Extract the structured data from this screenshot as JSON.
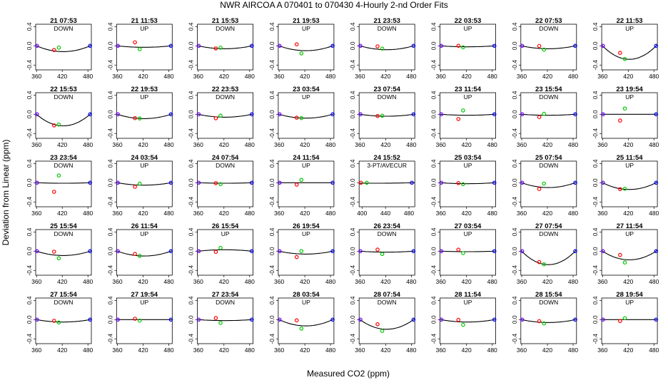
{
  "chart_data": {
    "type": "scatter",
    "title": "NWR   AIRCOA A   070401 to 070430   4-Hourly 2-nd Order Fits",
    "xlabel": "Measured CO2 (ppm)",
    "ylabel": "Deviation from Linear (ppm)",
    "ylim": [
      -0.5,
      0.45
    ],
    "yticks": [
      -0.4,
      0.0,
      0.4
    ],
    "ytick_labels": [
      "-0.4",
      "0.0",
      "0.4"
    ],
    "default_xlim": [
      358,
      488
    ],
    "default_xticks": [
      360,
      420,
      480
    ],
    "default_xtick_labels": [
      "360",
      "420",
      "480"
    ],
    "grid": false,
    "colors": {
      "low": "#6a00ff",
      "mid_a": "#ff0000",
      "mid_b": "#00c800",
      "high": "#0000ff",
      "curve": "#000000"
    },
    "panels": [
      {
        "title": "21 07:53",
        "label": "DOWN",
        "curve": {
          "a": 0.12,
          "vx": 420
        },
        "points": {
          "b": 0.02,
          "c": 0.08
        }
      },
      {
        "title": "21 11:53",
        "label": "UP",
        "curve": {
          "a": 0.03,
          "vx": 420
        },
        "points": {
          "b": 0.1,
          "c": -0.04
        }
      },
      {
        "title": "21 15:53",
        "label": "DOWN",
        "curve": {
          "a": 0.06,
          "vx": 420
        },
        "points": {
          "b": 0.0,
          "c": 0.02
        }
      },
      {
        "title": "21 19:53",
        "label": "UP",
        "curve": {
          "a": 0.1,
          "vx": 420
        },
        "points": {
          "b": 0.12,
          "c": -0.06
        }
      },
      {
        "title": "21 23:53",
        "label": "DOWN",
        "curve": {
          "a": 0.08,
          "vx": 420
        },
        "points": {
          "b": 0.06,
          "c": 0.02
        }
      },
      {
        "title": "22 03:53",
        "label": "UP",
        "curve": {
          "a": 0.02,
          "vx": 420
        },
        "points": {
          "b": 0.02,
          "c": -0.01
        }
      },
      {
        "title": "22 07:53",
        "label": "DOWN",
        "curve": {
          "a": 0.06,
          "vx": 420
        },
        "points": {
          "b": 0.05,
          "c": -0.02
        }
      },
      {
        "title": "22 11:53",
        "label": "UP",
        "curve": {
          "a": 0.28,
          "vx": 430
        },
        "points": {
          "b": 0.1,
          "c": 0.0
        }
      },
      {
        "title": "22 15:53",
        "label": "DOWN",
        "curve": {
          "a": 0.24,
          "vx": 425
        },
        "points": {
          "b": -0.02,
          "c": 0.02
        }
      },
      {
        "title": "22 19:53",
        "label": "UP",
        "curve": {
          "a": 0.09,
          "vx": 420
        },
        "points": {
          "b": 0.0,
          "c": 0.0
        }
      },
      {
        "title": "22 23:53",
        "label": "DOWN",
        "curve": {
          "a": 0.06,
          "vx": 420
        },
        "points": {
          "b": -0.03,
          "c": 0.03
        }
      },
      {
        "title": "23 03:54",
        "label": "UP",
        "curve": {
          "a": 0.08,
          "vx": 420
        },
        "points": {
          "b": 0.0,
          "c": 0.0
        }
      },
      {
        "title": "23 07:54",
        "label": "DOWN",
        "curve": {
          "a": 0.04,
          "vx": 420
        },
        "points": {
          "b": 0.0,
          "c": 0.01
        }
      },
      {
        "title": "23 11:54",
        "label": "UP",
        "curve": {
          "a": 0.02,
          "vx": 420
        },
        "points": {
          "b": -0.08,
          "c": 0.1
        }
      },
      {
        "title": "23 15:54",
        "label": "DOWN",
        "curve": {
          "a": 0.02,
          "vx": 420
        },
        "points": {
          "b": -0.04,
          "c": 0.03
        }
      },
      {
        "title": "23 19:54",
        "label": "UP",
        "curve": {
          "a": 0.0,
          "vx": 420
        },
        "points": {
          "b": -0.13,
          "c": 0.12
        }
      },
      {
        "title": "23 23:54",
        "label": "DOWN",
        "curve": {
          "a": 0.01,
          "vx": 420
        },
        "points": {
          "b": -0.18,
          "c": 0.16
        }
      },
      {
        "title": "24 03:54",
        "label": "UP",
        "curve": {
          "a": 0.05,
          "vx": 420
        },
        "points": {
          "b": -0.04,
          "c": 0.03
        }
      },
      {
        "title": "24 07:54",
        "label": "DOWN",
        "curve": {
          "a": 0.01,
          "vx": 420
        },
        "points": {
          "b": 0.0,
          "c": -0.02
        }
      },
      {
        "title": "24 11:54",
        "label": "UP",
        "curve": {
          "a": 0.0,
          "vx": 420
        },
        "points": {
          "b": -0.04,
          "c": 0.06
        }
      },
      {
        "title": "24 15:52",
        "label": "3-PT/AVECUR",
        "xlim": [
          395,
          490
        ],
        "xticks": [
          400,
          440,
          480
        ],
        "xtick_labels": [
          "400",
          "440",
          "480"
        ],
        "curve": {
          "a": 0.01,
          "vx": 440
        },
        "points": {
          "b": 0.02,
          "c": -0.02
        },
        "three_point": true
      },
      {
        "title": "25 03:54",
        "label": "UP",
        "curve": {
          "a": 0.02,
          "vx": 420
        },
        "points": {
          "b": 0.01,
          "c": -0.01
        }
      },
      {
        "title": "25 07:54",
        "label": "DOWN",
        "curve": {
          "a": 0.1,
          "vx": 420
        },
        "points": {
          "b": -0.04,
          "c": 0.08
        }
      },
      {
        "title": "25 11:54",
        "label": "UP",
        "curve": {
          "a": 0.14,
          "vx": 425
        },
        "points": {
          "b": -0.01,
          "c": 0.01
        }
      },
      {
        "title": "25 15:54",
        "label": "DOWN",
        "curve": {
          "a": 0.09,
          "vx": 420
        },
        "points": {
          "b": 0.07,
          "c": -0.06
        }
      },
      {
        "title": "26 11:54",
        "label": "UP",
        "curve": {
          "a": 0.1,
          "vx": 420
        },
        "points": {
          "b": 0.03,
          "c": 0.0
        }
      },
      {
        "title": "26 15:54",
        "label": "UP",
        "curve": {
          "a": -0.03,
          "vx": 420
        },
        "points": {
          "b": -0.04,
          "c": 0.04
        }
      },
      {
        "title": "26 19:54",
        "label": "UP",
        "curve": {
          "a": 0.06,
          "vx": 420
        },
        "points": {
          "b": -0.07,
          "c": 0.06
        }
      },
      {
        "title": "26 23:54",
        "label": "DOWN",
        "curve": {
          "a": 0.02,
          "vx": 420
        },
        "points": {
          "b": 0.05,
          "c": -0.04
        }
      },
      {
        "title": "27 03:54",
        "label": "UP",
        "curve": {
          "a": 0.01,
          "vx": 420
        },
        "points": {
          "b": 0.04,
          "c": -0.03
        }
      },
      {
        "title": "27 07:54",
        "label": "DOWN",
        "curve": {
          "a": 0.28,
          "vx": 430
        },
        "points": {
          "b": 0.02,
          "c": 0.0
        }
      },
      {
        "title": "27 11:54",
        "label": "UP",
        "curve": {
          "a": 0.18,
          "vx": 425
        },
        "points": {
          "b": 0.08,
          "c": -0.06
        }
      },
      {
        "title": "27 15:54",
        "label": "DOWN",
        "curve": {
          "a": 0.05,
          "vx": 420
        },
        "points": {
          "b": 0.02,
          "c": -0.01
        }
      },
      {
        "title": "27 19:54",
        "label": "UP",
        "curve": {
          "a": 0.0,
          "vx": 420
        },
        "points": {
          "b": 0.02,
          "c": -0.02
        }
      },
      {
        "title": "27 23:54",
        "label": "DOWN",
        "curve": {
          "a": 0.02,
          "vx": 420
        },
        "points": {
          "b": 0.05,
          "c": -0.05
        }
      },
      {
        "title": "28 03:54",
        "label": "UP",
        "curve": {
          "a": 0.13,
          "vx": 420
        },
        "points": {
          "b": 0.1,
          "c": -0.06
        }
      },
      {
        "title": "28 07:54",
        "label": "DOWN",
        "curve": {
          "a": 0.2,
          "vx": 425
        },
        "points": {
          "b": 0.08,
          "c": -0.04
        }
      },
      {
        "title": "28 11:54",
        "label": "UP",
        "curve": {
          "a": 0.05,
          "vx": 420
        },
        "points": {
          "b": 0.04,
          "c": -0.06
        }
      },
      {
        "title": "28 15:54",
        "label": "DOWN",
        "curve": {
          "a": 0.06,
          "vx": 420
        },
        "points": {
          "b": 0.02,
          "c": -0.02
        }
      },
      {
        "title": "28 19:54",
        "label": "UP",
        "curve": {
          "a": 0.0,
          "vx": 420
        },
        "points": {
          "b": -0.03,
          "c": 0.03
        }
      }
    ]
  }
}
